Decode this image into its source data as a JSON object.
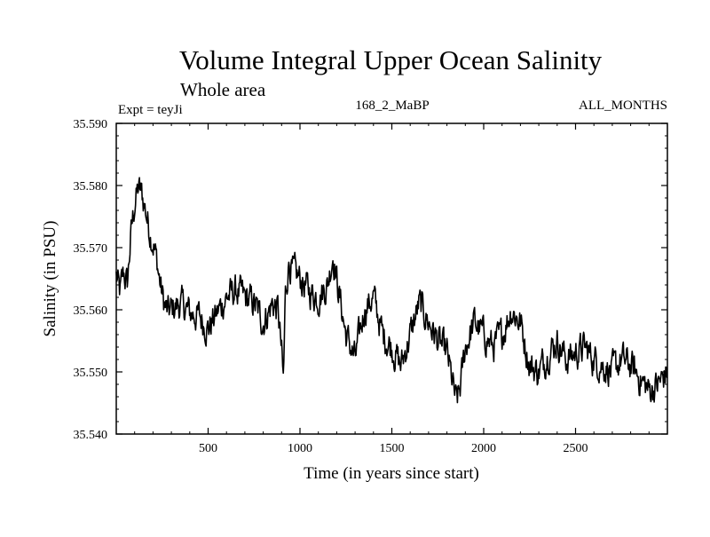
{
  "chart_data": {
    "type": "line",
    "title": "Volume Integral Upper Ocean Salinity",
    "subtitle": "Whole area",
    "annotations": {
      "left": "Expt = teyJi",
      "center": "168_2_MaBP",
      "right": "ALL_MONTHS"
    },
    "xlabel": "Time (in years since start)",
    "ylabel": "Salinity (in PSU)",
    "xlim": [
      0,
      3000
    ],
    "ylim": [
      35.54,
      35.59
    ],
    "x_ticks": [
      500,
      1000,
      1500,
      2000,
      2500
    ],
    "x_tick_labels": [
      "500",
      "1000",
      "1500",
      "2000",
      "2500"
    ],
    "y_ticks": [
      35.54,
      35.55,
      35.56,
      35.57,
      35.58,
      35.59
    ],
    "y_tick_labels": [
      "35.540",
      "35.550",
      "35.560",
      "35.570",
      "35.580",
      "35.590"
    ],
    "grid": false,
    "line_color": "#000000",
    "series": [
      {
        "name": "salinity",
        "x": [
          0,
          20,
          40,
          60,
          80,
          100,
          120,
          140,
          160,
          180,
          200,
          220,
          240,
          260,
          280,
          300,
          350,
          400,
          450,
          500,
          550,
          600,
          650,
          700,
          750,
          800,
          850,
          880,
          900,
          910,
          920,
          940,
          960,
          1000,
          1050,
          1100,
          1150,
          1180,
          1200,
          1250,
          1300,
          1350,
          1400,
          1450,
          1500,
          1550,
          1600,
          1650,
          1700,
          1750,
          1800,
          1850,
          1870,
          1900,
          1950,
          2000,
          2050,
          2100,
          2150,
          2200,
          2250,
          2300,
          2350,
          2400,
          2450,
          2500,
          2550,
          2600,
          2650,
          2700,
          2750,
          2800,
          2850,
          2900,
          2950,
          3000
        ],
        "values": [
          35.5655,
          35.5625,
          35.566,
          35.564,
          35.572,
          35.577,
          35.5795,
          35.5785,
          35.576,
          35.573,
          35.571,
          35.568,
          35.564,
          35.561,
          35.5595,
          35.56,
          35.561,
          35.5595,
          35.559,
          35.557,
          35.5595,
          35.562,
          35.563,
          35.562,
          35.561,
          35.558,
          35.561,
          35.56,
          35.553,
          35.548,
          35.562,
          35.568,
          35.566,
          35.565,
          35.563,
          35.562,
          35.564,
          35.569,
          35.565,
          35.556,
          35.552,
          35.56,
          35.562,
          35.556,
          35.554,
          35.551,
          35.556,
          35.561,
          35.558,
          35.555,
          35.553,
          35.545,
          35.547,
          35.554,
          35.558,
          35.556,
          35.554,
          35.556,
          35.56,
          35.558,
          35.551,
          35.55,
          35.553,
          35.555,
          35.552,
          35.553,
          35.554,
          35.552,
          35.551,
          35.55,
          35.552,
          35.551,
          35.549,
          35.547,
          35.548,
          35.55
        ]
      }
    ]
  }
}
